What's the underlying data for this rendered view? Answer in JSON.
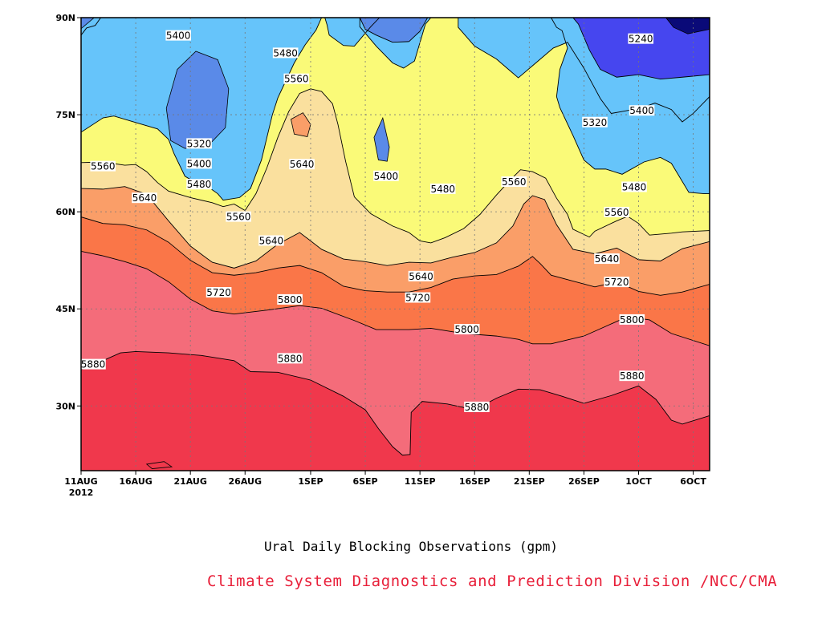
{
  "chart_data": {
    "type": "heatmap",
    "title": "Ural Daily Blocking Observations (gpm)",
    "credit": "Climate System Diagnostics and Prediction Division /NCC/CMA",
    "x_tick_labels": [
      "11AUG",
      "16AUG",
      "21AUG",
      "26AUG",
      "1SEP",
      "6SEP",
      "11SEP",
      "16SEP",
      "21SEP",
      "26SEP",
      "1OCT",
      "6OCT"
    ],
    "x_year_label": "2012",
    "x_days": [
      0,
      5,
      10,
      15,
      21,
      26,
      31,
      36,
      41,
      46,
      51,
      56
    ],
    "x_range_days": [
      0,
      57.5
    ],
    "y_tick_labels": [
      "30N",
      "45N",
      "60N",
      "75N",
      "90N"
    ],
    "y_tick_values": [
      30,
      45,
      60,
      75,
      90
    ],
    "y_range": [
      20,
      90
    ],
    "contour_levels": [
      5240,
      5320,
      5400,
      5480,
      5560,
      5640,
      5720,
      5800,
      5880
    ],
    "fill_colors": [
      "#0a0a78",
      "#1c1ce6",
      "#4646ef",
      "#5a8ae8",
      "#66c4fa",
      "#fafa78",
      "#fae09e",
      "#fa9e68",
      "#fa7648",
      "#f46c7a",
      "#f0384c"
    ],
    "grid": true,
    "labels": [
      {
        "text": "5400",
        "day": 8.9,
        "lat": 87.2
      },
      {
        "text": "5480",
        "day": 18.7,
        "lat": 84.5
      },
      {
        "text": "5560",
        "day": 19.7,
        "lat": 80.5
      },
      {
        "text": "5320",
        "day": 10.8,
        "lat": 70.5
      },
      {
        "text": "5400",
        "day": 10.8,
        "lat": 67.4
      },
      {
        "text": "5480",
        "day": 10.8,
        "lat": 64.2
      },
      {
        "text": "5560",
        "day": 2.0,
        "lat": 67.0
      },
      {
        "text": "5640",
        "day": 5.8,
        "lat": 62.1
      },
      {
        "text": "5560",
        "day": 14.4,
        "lat": 59.2
      },
      {
        "text": "5640",
        "day": 17.4,
        "lat": 55.5
      },
      {
        "text": "5640",
        "day": 20.2,
        "lat": 67.3
      },
      {
        "text": "5400",
        "day": 27.9,
        "lat": 65.5
      },
      {
        "text": "5480",
        "day": 33.1,
        "lat": 63.5
      },
      {
        "text": "5560",
        "day": 39.6,
        "lat": 64.6
      },
      {
        "text": "5720",
        "day": 12.6,
        "lat": 47.5
      },
      {
        "text": "5800",
        "day": 19.1,
        "lat": 46.4
      },
      {
        "text": "5640",
        "day": 31.1,
        "lat": 50.0
      },
      {
        "text": "5720",
        "day": 30.8,
        "lat": 46.7
      },
      {
        "text": "5800",
        "day": 35.3,
        "lat": 41.8
      },
      {
        "text": "5880",
        "day": 19.1,
        "lat": 37.3
      },
      {
        "text": "5880",
        "day": 36.2,
        "lat": 29.8
      },
      {
        "text": "5880",
        "day": 1.1,
        "lat": 36.4
      },
      {
        "text": "5240",
        "day": 51.2,
        "lat": 86.7
      },
      {
        "text": "5400",
        "day": 51.3,
        "lat": 75.6
      },
      {
        "text": "5320",
        "day": 47.0,
        "lat": 73.8
      },
      {
        "text": "5480",
        "day": 50.6,
        "lat": 63.8
      },
      {
        "text": "5560",
        "day": 49.0,
        "lat": 59.9
      },
      {
        "text": "5640",
        "day": 48.1,
        "lat": 52.7
      },
      {
        "text": "5720",
        "day": 49.0,
        "lat": 49.1
      },
      {
        "text": "5800",
        "day": 50.4,
        "lat": 43.3
      },
      {
        "text": "5880",
        "day": 50.4,
        "lat": 34.6
      }
    ],
    "contours": [
      {
        "level": 5880,
        "fill": "#f0384c",
        "points": [
          [
            0,
            35.6
          ],
          [
            2,
            37
          ],
          [
            3.6,
            38.2
          ],
          [
            5,
            38.4
          ],
          [
            8,
            38.2
          ],
          [
            11,
            37.8
          ],
          [
            14,
            37
          ],
          [
            15.5,
            35.3
          ],
          [
            18,
            35.2
          ],
          [
            21,
            34
          ],
          [
            24,
            31.5
          ],
          [
            26,
            29.4
          ],
          [
            27.2,
            26.5
          ],
          [
            28.5,
            23.7
          ],
          [
            29.4,
            22.4
          ],
          [
            30.1,
            22.5
          ],
          [
            30.2,
            29
          ],
          [
            31.2,
            30.7
          ],
          [
            33.5,
            30.3
          ],
          [
            36,
            29.4
          ],
          [
            38,
            31.2
          ],
          [
            40,
            32.6
          ],
          [
            42,
            32.5
          ],
          [
            44,
            31.5
          ],
          [
            46,
            30.4
          ],
          [
            48.5,
            31.6
          ],
          [
            51,
            33.1
          ],
          [
            52.6,
            31
          ],
          [
            54,
            27.8
          ],
          [
            55,
            27.2
          ],
          [
            57.5,
            28.5
          ]
        ]
      },
      {
        "level": 5800,
        "fill": "#f46c7a",
        "points": [
          [
            0,
            53.9
          ],
          [
            2,
            53.2
          ],
          [
            4,
            52.3
          ],
          [
            6,
            51.2
          ],
          [
            8,
            49.2
          ],
          [
            10,
            46.5
          ],
          [
            12,
            44.7
          ],
          [
            14,
            44.2
          ],
          [
            17,
            44.8
          ],
          [
            20,
            45.5
          ],
          [
            22,
            45.1
          ],
          [
            25,
            43.2
          ],
          [
            27,
            41.8
          ],
          [
            30,
            41.8
          ],
          [
            32,
            42
          ],
          [
            35,
            41.2
          ],
          [
            38,
            40.8
          ],
          [
            40,
            40.3
          ],
          [
            41.3,
            39.6
          ],
          [
            43,
            39.6
          ],
          [
            46,
            40.8
          ],
          [
            48,
            42.3
          ],
          [
            50,
            43.8
          ],
          [
            52,
            43.3
          ],
          [
            54,
            41.2
          ],
          [
            57.5,
            39.3
          ]
        ]
      },
      {
        "level": 5720,
        "fill": "#fa7648",
        "points": [
          [
            0,
            59.2
          ],
          [
            2,
            58.2
          ],
          [
            4,
            58
          ],
          [
            6,
            57.2
          ],
          [
            8,
            55.3
          ],
          [
            10,
            52.5
          ],
          [
            12,
            50.6
          ],
          [
            14,
            50.2
          ],
          [
            16,
            50.6
          ],
          [
            18,
            51.3
          ],
          [
            20,
            51.7
          ],
          [
            22,
            50.6
          ],
          [
            24,
            48.5
          ],
          [
            26,
            47.8
          ],
          [
            28,
            47.6
          ],
          [
            30,
            47.6
          ],
          [
            32,
            48.3
          ],
          [
            34,
            49.6
          ],
          [
            36,
            50.1
          ],
          [
            38,
            50.3
          ],
          [
            40,
            51.6
          ],
          [
            41.3,
            53.1
          ],
          [
            42,
            52
          ],
          [
            43,
            50.2
          ],
          [
            45,
            49.3
          ],
          [
            47,
            48.4
          ],
          [
            49,
            49.2
          ],
          [
            51,
            47.7
          ],
          [
            53,
            47.1
          ],
          [
            55,
            47.6
          ],
          [
            57.5,
            48.8
          ]
        ]
      },
      {
        "level": 5640,
        "fill": "#fa9e68",
        "points": [
          [
            0,
            63.6
          ],
          [
            2,
            63.5
          ],
          [
            4,
            63.9
          ],
          [
            6,
            62.7
          ],
          [
            8,
            58.6
          ],
          [
            10,
            54.7
          ],
          [
            12,
            52.2
          ],
          [
            14,
            51.3
          ],
          [
            16,
            52.4
          ],
          [
            18,
            55
          ],
          [
            20,
            56.8
          ],
          [
            22,
            54.2
          ],
          [
            24,
            52.7
          ],
          [
            26,
            52.3
          ],
          [
            28,
            51.7
          ],
          [
            30,
            52.2
          ],
          [
            32,
            52.1
          ],
          [
            34,
            53
          ],
          [
            36,
            53.7
          ],
          [
            38,
            55.2
          ],
          [
            39.5,
            57.8
          ],
          [
            40.5,
            61.2
          ],
          [
            41.3,
            62.5
          ],
          [
            42.4,
            61.9
          ],
          [
            43.5,
            58
          ],
          [
            45,
            54.2
          ],
          [
            47,
            53.5
          ],
          [
            49,
            54.4
          ],
          [
            51,
            52.6
          ],
          [
            53,
            52.4
          ],
          [
            55,
            54.3
          ],
          [
            57.5,
            55.4
          ]
        ]
      },
      {
        "level": 5560,
        "fill": "#fae09e",
        "points": [
          [
            0,
            67.6
          ],
          [
            2,
            67.7
          ],
          [
            4,
            67.2
          ],
          [
            5,
            67.3
          ],
          [
            6,
            66.2
          ],
          [
            7,
            64.5
          ],
          [
            8,
            63.2
          ],
          [
            10,
            62.2
          ],
          [
            12,
            61.4
          ],
          [
            13,
            60.8
          ],
          [
            14,
            61.2
          ],
          [
            15,
            60.2
          ],
          [
            16,
            62.8
          ],
          [
            17,
            66.8
          ],
          [
            18,
            71.5
          ],
          [
            19,
            75.5
          ],
          [
            20,
            78.3
          ],
          [
            21,
            79
          ],
          [
            22,
            78.6
          ],
          [
            23,
            76.7
          ],
          [
            23.5,
            73.5
          ],
          [
            24.2,
            67.8
          ],
          [
            25,
            62.3
          ],
          [
            26.5,
            59.7
          ],
          [
            28.5,
            57.8
          ],
          [
            30,
            56.8
          ],
          [
            31,
            55.5
          ],
          [
            32,
            55.2
          ],
          [
            33.3,
            56
          ],
          [
            35,
            57.4
          ],
          [
            36.5,
            59.6
          ],
          [
            38,
            62.6
          ],
          [
            39.2,
            64.8
          ],
          [
            40.2,
            66.5
          ],
          [
            41.3,
            66.2
          ],
          [
            42.5,
            65.2
          ],
          [
            43.5,
            62.1
          ],
          [
            44.5,
            59.6
          ],
          [
            45,
            57.3
          ],
          [
            46.5,
            56.1
          ],
          [
            47,
            57
          ],
          [
            49,
            58.6
          ],
          [
            50,
            59.3
          ],
          [
            51,
            58.2
          ],
          [
            52,
            56.4
          ],
          [
            54,
            56.7
          ],
          [
            55,
            56.9
          ],
          [
            57.5,
            57.1
          ]
        ]
      },
      {
        "level": 5480,
        "fill": "#fafa78",
        "points": [
          [
            0,
            72.3
          ],
          [
            2,
            74.5
          ],
          [
            3,
            74.8
          ],
          [
            5,
            73.8
          ],
          [
            7,
            72.8
          ],
          [
            8,
            71.2
          ],
          [
            8.5,
            69
          ],
          [
            9.5,
            65.5
          ],
          [
            10.5,
            64.5
          ],
          [
            11.5,
            64
          ],
          [
            12.5,
            62.8
          ],
          [
            13,
            61.8
          ],
          [
            14.5,
            62.2
          ],
          [
            15.5,
            63.6
          ],
          [
            16.5,
            68
          ],
          [
            17.5,
            75
          ],
          [
            18,
            77.6
          ],
          [
            19.5,
            83
          ],
          [
            20.5,
            85.8
          ],
          [
            21.5,
            88.1
          ],
          [
            22,
            90
          ],
          [
            25.5,
            90
          ],
          [
            25.5,
            88.6
          ],
          [
            27,
            85.6
          ],
          [
            28.5,
            83
          ],
          [
            29.5,
            82.2
          ],
          [
            30.5,
            83.3
          ],
          [
            31.5,
            89
          ],
          [
            32,
            90
          ],
          [
            43,
            90
          ],
          [
            43.5,
            88.5
          ],
          [
            44,
            88
          ],
          [
            44.5,
            85.3
          ],
          [
            43.8,
            82
          ],
          [
            43.5,
            77.8
          ],
          [
            43.8,
            76.1
          ],
          [
            45,
            71.8
          ],
          [
            46,
            68
          ],
          [
            47,
            66.6
          ],
          [
            48,
            66.6
          ],
          [
            49.5,
            65.8
          ],
          [
            51.5,
            67.7
          ],
          [
            53,
            68.4
          ],
          [
            54,
            67.5
          ],
          [
            55.6,
            63
          ],
          [
            57,
            62.8
          ],
          [
            57.5,
            62.8
          ]
        ]
      },
      {
        "level": 5400,
        "fill": "#66c4fa",
        "points": [
          [
            0,
            87.3
          ],
          [
            0.5,
            88.4
          ],
          [
            1.3,
            88.8
          ],
          [
            1.8,
            90
          ],
          [
            22,
            90
          ],
          [
            22.3,
            90
          ],
          [
            22.5,
            88.9
          ],
          [
            22.7,
            87.3
          ],
          [
            24,
            85.7
          ],
          [
            25,
            85.6
          ],
          [
            26.5,
            88.6
          ],
          [
            27.3,
            90
          ],
          [
            34.5,
            90
          ],
          [
            34.5,
            88.5
          ],
          [
            36,
            85.6
          ],
          [
            38,
            83.6
          ],
          [
            40,
            80.7
          ],
          [
            41.6,
            83
          ],
          [
            43.2,
            85.3
          ],
          [
            44.5,
            86.2
          ],
          [
            46,
            82.2
          ],
          [
            47.5,
            77.5
          ],
          [
            48.5,
            75.2
          ],
          [
            49.5,
            75.5
          ],
          [
            50.5,
            75.8
          ],
          [
            51.5,
            76.2
          ],
          [
            52.5,
            76.8
          ],
          [
            54,
            75.8
          ],
          [
            55,
            73.9
          ],
          [
            56,
            75.2
          ],
          [
            57.5,
            77.8
          ]
        ]
      },
      {
        "level": 5320,
        "fill": "#5a8ae8",
        "points": [
          [
            25.5,
            90
          ],
          [
            26,
            88.2
          ],
          [
            27,
            87.3
          ],
          [
            28.5,
            86.2
          ],
          [
            30,
            86.3
          ],
          [
            31,
            87.9
          ],
          [
            31.7,
            90
          ]
        ]
      },
      {
        "level": 5240,
        "fill": "#4646ef",
        "points": [
          [
            45,
            90
          ],
          [
            45.5,
            89
          ],
          [
            46.5,
            85
          ],
          [
            47.5,
            82
          ],
          [
            49,
            80.8
          ],
          [
            51,
            81.2
          ],
          [
            53,
            80.5
          ],
          [
            55,
            80.8
          ],
          [
            57.5,
            81.2
          ]
        ]
      }
    ]
  }
}
